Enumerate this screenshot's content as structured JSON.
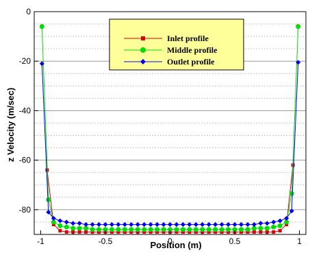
{
  "chart_data": {
    "type": "line",
    "xlabel": "Position (m)",
    "ylabel": "z Velocity (m/sec)",
    "xlim": [
      -1.05,
      1.05
    ],
    "ylim": [
      -90,
      0
    ],
    "x_ticks": [
      -1,
      -0.5,
      0,
      0.5,
      1
    ],
    "x_tick_labels": [
      "-1",
      "-0.5",
      "0",
      "0.5",
      "1"
    ],
    "y_ticks": [
      0,
      -20,
      -40,
      -60,
      -80
    ],
    "y_tick_labels": [
      "0",
      "-20",
      "-40",
      "-60",
      "-80"
    ],
    "grid": "horizontal dashed",
    "legend_placement": "top-center",
    "legend_background": "#ffff99",
    "series": [
      {
        "name": "Inlet profile",
        "color": "#dd0000",
        "marker": "square",
        "x": [
          -0.95,
          -0.9,
          -0.85,
          -0.8,
          -0.75,
          -0.7,
          -0.65,
          -0.6,
          -0.55,
          -0.5,
          -0.45,
          -0.4,
          -0.35,
          -0.3,
          -0.25,
          -0.2,
          -0.15,
          -0.1,
          -0.05,
          0,
          0.05,
          0.1,
          0.15,
          0.2,
          0.25,
          0.3,
          0.35,
          0.4,
          0.45,
          0.5,
          0.55,
          0.6,
          0.65,
          0.7,
          0.75,
          0.8,
          0.85,
          0.9,
          0.95
        ],
        "y": [
          -64,
          -86,
          -88.5,
          -89,
          -89,
          -89,
          -89,
          -89,
          -89,
          -89,
          -89,
          -89,
          -89,
          -89,
          -89,
          -89,
          -89,
          -89,
          -89,
          -89,
          -89,
          -89,
          -89,
          -89,
          -89,
          -89,
          -89,
          -89,
          -89,
          -89,
          -89,
          -89,
          -89,
          -89,
          -89,
          -89,
          -88.5,
          -86,
          -62
        ]
      },
      {
        "name": "Middle profile",
        "color": "#00dd00",
        "marker": "circle",
        "x": [
          -0.99,
          -0.94,
          -0.9,
          -0.85,
          -0.8,
          -0.75,
          -0.7,
          -0.65,
          -0.6,
          -0.55,
          -0.5,
          -0.45,
          -0.4,
          -0.35,
          -0.3,
          -0.25,
          -0.2,
          -0.15,
          -0.1,
          -0.05,
          0,
          0.05,
          0.1,
          0.15,
          0.2,
          0.25,
          0.3,
          0.35,
          0.4,
          0.45,
          0.5,
          0.55,
          0.6,
          0.65,
          0.7,
          0.75,
          0.8,
          0.85,
          0.9,
          0.94,
          0.99
        ],
        "y": [
          -6,
          -76,
          -85,
          -86.5,
          -87,
          -87.5,
          -87.5,
          -87.5,
          -88,
          -88,
          -88,
          -88,
          -88,
          -88,
          -88,
          -88,
          -88,
          -88,
          -88,
          -88,
          -88,
          -88,
          -88,
          -88,
          -88,
          -88,
          -88,
          -88,
          -88,
          -88,
          -88,
          -88,
          -88,
          -87.5,
          -87.5,
          -87.5,
          -87,
          -86.5,
          -85,
          -73.5,
          -6
        ]
      },
      {
        "name": "Outlet profile",
        "color": "#0000ee",
        "marker": "diamond",
        "x": [
          -0.99,
          -0.94,
          -0.9,
          -0.85,
          -0.8,
          -0.75,
          -0.7,
          -0.65,
          -0.6,
          -0.55,
          -0.5,
          -0.45,
          -0.4,
          -0.35,
          -0.3,
          -0.25,
          -0.2,
          -0.15,
          -0.1,
          -0.05,
          0,
          0.05,
          0.1,
          0.15,
          0.2,
          0.25,
          0.3,
          0.35,
          0.4,
          0.45,
          0.5,
          0.55,
          0.6,
          0.65,
          0.7,
          0.75,
          0.8,
          0.85,
          0.9,
          0.94,
          0.99
        ],
        "y": [
          -21,
          -81,
          -83.5,
          -84.5,
          -85,
          -85.5,
          -85.5,
          -86,
          -86,
          -86,
          -86,
          -86,
          -86,
          -86,
          -86,
          -86,
          -86,
          -86,
          -86,
          -86,
          -86,
          -86,
          -86,
          -86,
          -86,
          -86,
          -86,
          -86,
          -86,
          -86,
          -86,
          -86,
          -86,
          -86,
          -85.5,
          -85.5,
          -85,
          -84.5,
          -83.5,
          -80.5,
          -20.5
        ]
      }
    ]
  }
}
